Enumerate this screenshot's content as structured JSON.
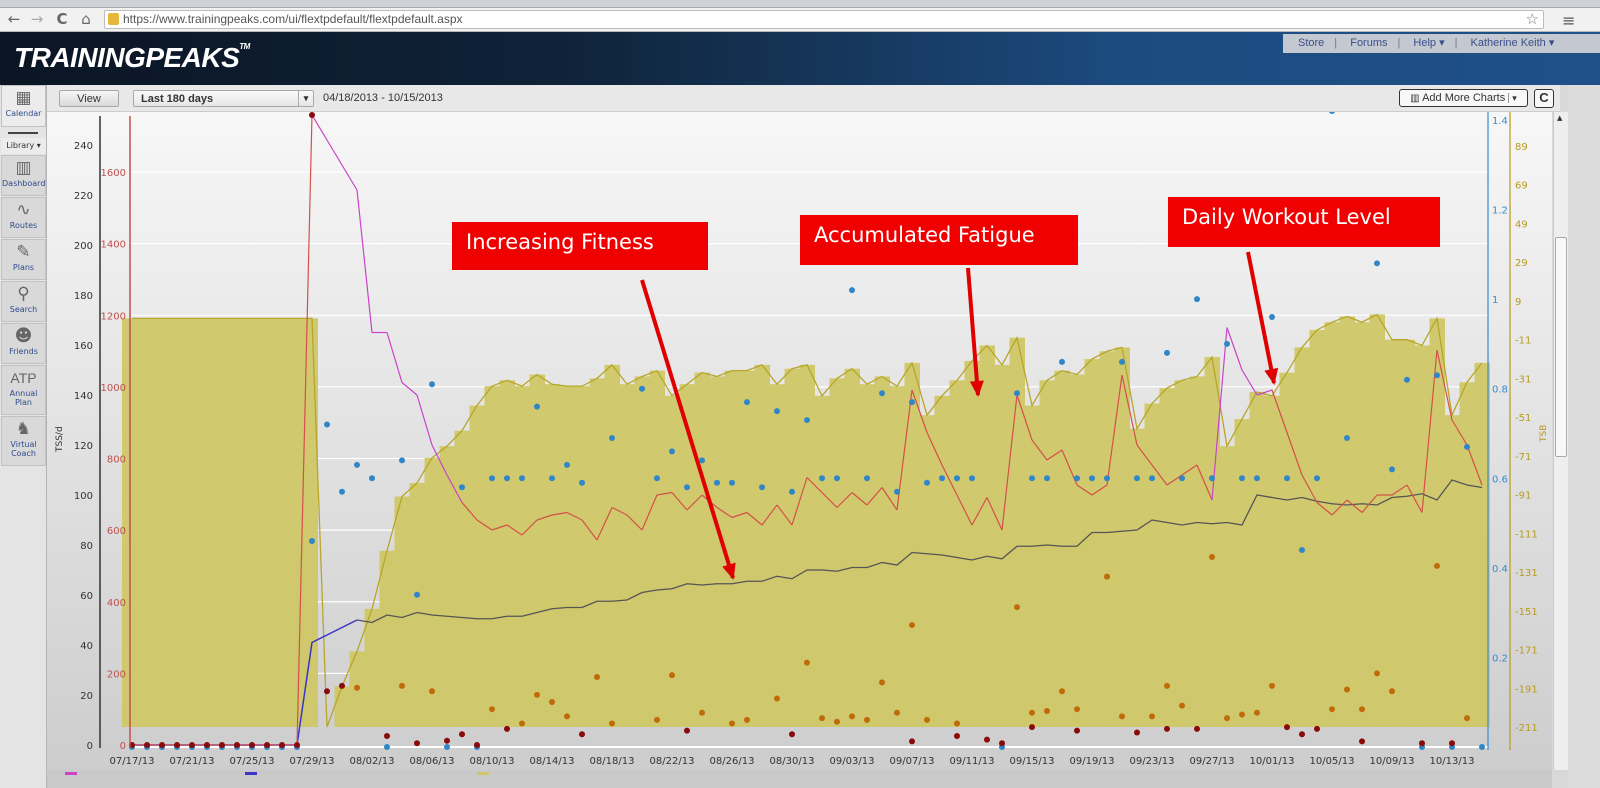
{
  "browser": {
    "url_host": "https://www.trainingpeaks.com",
    "url_path": "/ui/flextpdefault/flextpdefault.aspx",
    "back_icon": "←",
    "forward_icon": "→",
    "reload_icon": "C",
    "home_icon": "⌂",
    "star_icon": "☆",
    "menu_icon": "≡"
  },
  "header": {
    "logo": "TRAININGPEAKS",
    "tm": "TM",
    "links": [
      "Store",
      "Forums",
      "Help ▾",
      "Katherine Keith ▾"
    ]
  },
  "toolbar": {
    "view_label": "View",
    "range_value": "Last 180 days",
    "range_arrow": "▾",
    "date_range": "04/18/2013 - 10/15/2013",
    "add_charts_label": "Add More Charts",
    "add_charts_arrow": "▾",
    "refresh_icon": "C"
  },
  "sidebar": {
    "items": [
      {
        "label": "Calendar",
        "icon": "calendar-icon",
        "glyph": "▦"
      },
      {
        "label": "Library ▾",
        "icon": "",
        "glyph": ""
      },
      {
        "label": "Dashboard",
        "icon": "bar-chart-icon",
        "glyph": "▥"
      },
      {
        "label": "Routes",
        "icon": "route-icon",
        "glyph": "∿"
      },
      {
        "label": "Plans",
        "icon": "plan-edit-icon",
        "glyph": "✎"
      },
      {
        "label": "Search",
        "icon": "search-icon",
        "glyph": "⚲"
      },
      {
        "label": "Friends",
        "icon": "friends-icon",
        "glyph": "☻"
      },
      {
        "label": "Annual Plan",
        "icon": "atp-icon",
        "glyph": "ATP"
      },
      {
        "label": "Virtual Coach",
        "icon": "coach-icon",
        "glyph": "♞"
      }
    ]
  },
  "annotations": [
    {
      "text": "Increasing Fitness"
    },
    {
      "text": "Accumulated Fatigue"
    },
    {
      "text": "Daily Workout Level"
    }
  ],
  "chart_data": {
    "type": "line",
    "grid": true,
    "colors": {
      "fitness": "#555555",
      "fitness_early": "#3a34c8",
      "fatigue": "#d4504a",
      "fatigue_high": "#c844c8",
      "form": "#b8a62a",
      "form_fill": "#cfc766",
      "if_dots": "#2f86c8",
      "dots_dark": "#8a0a0a",
      "dots_orange": "#c06a08",
      "axis_red": "#c0504d",
      "axis_blue": "#3a8ad0",
      "axis_tsb": "#b89a20"
    },
    "y_left": {
      "label": "TSS/d",
      "range": [
        0,
        240
      ],
      "ticks": [
        0,
        20,
        40,
        60,
        80,
        100,
        120,
        140,
        160,
        180,
        200,
        220,
        240
      ]
    },
    "y_left2": {
      "range": [
        0,
        1600
      ],
      "ticks": [
        0,
        200,
        400,
        600,
        800,
        1000,
        1200,
        1400,
        1600
      ]
    },
    "y_right": {
      "range": [
        0,
        1.4
      ],
      "ticks": [
        "0.2",
        "0.4",
        "0.6",
        "0.8",
        "1",
        "1.2",
        "1.4"
      ]
    },
    "y_right2": {
      "label": "TSB",
      "range": [
        -211,
        89
      ],
      "ticks": [
        89,
        69,
        49,
        29,
        9,
        -11,
        -31,
        -51,
        -71,
        -91,
        -111,
        -131,
        -151,
        -171,
        -191,
        -211
      ]
    },
    "x_ticks": [
      "07/17/13",
      "07/21/13",
      "07/25/13",
      "07/29/13",
      "08/02/13",
      "08/06/13",
      "08/10/13",
      "08/14/13",
      "08/18/13",
      "08/22/13",
      "08/26/13",
      "08/30/13",
      "09/03/13",
      "09/07/13",
      "09/11/13",
      "09/15/13",
      "09/19/13",
      "09/23/13",
      "09/27/13",
      "10/01/13",
      "10/05/13",
      "10/09/13",
      "10/13/13"
    ],
    "dates": [
      "07/17/13",
      "07/18/13",
      "07/19/13",
      "07/20/13",
      "07/21/13",
      "07/22/13",
      "07/23/13",
      "07/24/13",
      "07/25/13",
      "07/26/13",
      "07/27/13",
      "07/28/13",
      "07/29/13",
      "07/30/13",
      "07/31/13",
      "08/01/13",
      "08/02/13",
      "08/03/13",
      "08/04/13",
      "08/05/13",
      "08/06/13",
      "08/07/13",
      "08/08/13",
      "08/09/13",
      "08/10/13",
      "08/11/13",
      "08/12/13",
      "08/13/13",
      "08/14/13",
      "08/15/13",
      "08/16/13",
      "08/17/13",
      "08/18/13",
      "08/19/13",
      "08/20/13",
      "08/21/13",
      "08/22/13",
      "08/23/13",
      "08/24/13",
      "08/25/13",
      "08/26/13",
      "08/27/13",
      "08/28/13",
      "08/29/13",
      "08/30/13",
      "08/31/13",
      "09/01/13",
      "09/02/13",
      "09/03/13",
      "09/04/13",
      "09/05/13",
      "09/06/13",
      "09/07/13",
      "09/08/13",
      "09/09/13",
      "09/10/13",
      "09/11/13",
      "09/12/13",
      "09/13/13",
      "09/14/13",
      "09/15/13",
      "09/16/13",
      "09/17/13",
      "09/18/13",
      "09/19/13",
      "09/20/13",
      "09/21/13",
      "09/22/13",
      "09/23/13",
      "09/24/13",
      "09/25/13",
      "09/26/13",
      "09/27/13",
      "09/28/13",
      "09/29/13",
      "09/30/13",
      "10/01/13",
      "10/02/13",
      "10/03/13",
      "10/04/13",
      "10/05/13",
      "10/06/13",
      "10/07/13",
      "10/08/13",
      "10/09/13",
      "10/10/13",
      "10/11/13",
      "10/12/13",
      "10/13/13",
      "10/14/13",
      "10/15/13"
    ],
    "series": [
      {
        "key": "fitness",
        "axis": "left",
        "values": [
          0,
          0,
          0,
          0,
          0,
          0,
          0,
          0,
          0,
          0,
          0,
          0,
          41,
          44,
          47,
          50,
          49,
          52,
          51,
          53,
          52,
          51.5,
          51,
          50.5,
          50.5,
          51.5,
          51.5,
          53,
          54.5,
          55,
          55,
          57.5,
          57.5,
          58,
          61,
          62,
          62.5,
          64.5,
          64,
          64.5,
          64.5,
          65.5,
          65.5,
          67.5,
          66.5,
          70,
          70,
          69.5,
          71,
          71,
          73,
          72,
          77,
          76.5,
          76,
          75,
          74,
          75.5,
          74.5,
          79.5,
          79.5,
          80,
          79.5,
          79.5,
          85,
          85,
          85.5,
          86,
          90,
          89,
          88,
          89,
          88.5,
          89,
          88,
          100,
          99,
          98,
          99,
          97.5,
          96.5,
          96,
          96.5,
          96,
          99,
          99.5,
          100.5,
          98,
          106,
          104,
          103
        ]
      },
      {
        "key": "fatigue",
        "axis": "left",
        "values": [
          0,
          0,
          0,
          0,
          0,
          0,
          0,
          0,
          0,
          0,
          0,
          0,
          252,
          242,
          232,
          222,
          165,
          165,
          145,
          140,
          120,
          108,
          97,
          90,
          86,
          88,
          84,
          90,
          92,
          93,
          90,
          82,
          95,
          92,
          86,
          100,
          101,
          94,
          100,
          95,
          91,
          93,
          88,
          96,
          88,
          107,
          101,
          95,
          101,
          96,
          103,
          94,
          142,
          125,
          112,
          100,
          88,
          99,
          86,
          140,
          122,
          114,
          118,
          104,
          100,
          104,
          148,
          120,
          112,
          104,
          108,
          112,
          98,
          167,
          150,
          140,
          142,
          125,
          108,
          97,
          92,
          98,
          93,
          100,
          100,
          104,
          93,
          158,
          130,
          120,
          104
        ]
      },
      {
        "key": "form",
        "axis": "right2",
        "values": [
          0,
          0,
          0,
          0,
          0,
          0,
          0,
          0,
          0,
          0,
          0,
          0,
          0,
          -211,
          -190,
          -172,
          -150,
          -120,
          -92,
          -85,
          -72,
          -66,
          -58,
          -45,
          -35,
          -32,
          -35,
          -29,
          -34,
          -35,
          -35,
          -31,
          -24,
          -34,
          -30,
          -27,
          -40,
          -34,
          -28,
          -30,
          -27,
          -27,
          -24,
          -34,
          -26,
          -24,
          -40,
          -31,
          -26,
          -34,
          -30,
          -35,
          -23,
          -50,
          -40,
          -32,
          -22,
          -14,
          -24,
          -10,
          -45,
          -32,
          -27,
          -29,
          -21,
          -17,
          -15,
          -57,
          -44,
          -36,
          -32,
          -30,
          -20,
          -66,
          -52,
          -38,
          -40,
          -28,
          -15,
          -6,
          -2,
          1,
          -2,
          2,
          -11,
          -11,
          -14,
          0,
          -50,
          -33,
          -23
        ]
      },
      {
        "key": "if_dots",
        "axis": "right",
        "values": [
          0,
          0,
          0,
          0,
          0,
          0,
          0,
          0,
          0,
          0,
          0,
          0,
          0.46,
          0.72,
          0.57,
          0.63,
          0.6,
          0,
          0.64,
          0.34,
          0.81,
          0,
          0.58,
          0,
          0.6,
          0.6,
          0.6,
          0.76,
          0.6,
          0.63,
          0.59,
          null,
          0.69,
          null,
          0.8,
          0.6,
          0.66,
          0.58,
          0.64,
          0.59,
          0.59,
          0.77,
          0.58,
          0.75,
          0.57,
          0.73,
          0.6,
          0.6,
          1.02,
          0.6,
          0.79,
          0.57,
          0.77,
          0.59,
          0.6,
          0.6,
          0.6,
          null,
          0,
          0.79,
          0.6,
          0.6,
          0.86,
          0.6,
          0.6,
          0.6,
          0.86,
          0.6,
          0.6,
          0.88,
          0.6,
          1.0,
          0.6,
          0.9,
          0.6,
          0.6,
          0.96,
          0.6,
          0.44,
          0.6,
          1.42,
          0.69,
          null,
          1.08,
          0.62,
          0.82,
          0,
          0.83,
          0,
          0.67,
          0
        ]
      },
      {
        "key": "dots_dark",
        "axis": "left2",
        "values": [
          0,
          0,
          0,
          0,
          0,
          0,
          0,
          0,
          0,
          0,
          0,
          0,
          null,
          150,
          165,
          null,
          null,
          25,
          null,
          5,
          null,
          12,
          30,
          0,
          null,
          45,
          null,
          null,
          null,
          null,
          30,
          null,
          null,
          null,
          null,
          null,
          null,
          40,
          null,
          null,
          null,
          null,
          null,
          null,
          30,
          null,
          null,
          null,
          null,
          null,
          null,
          null,
          10,
          null,
          null,
          25,
          null,
          15,
          5,
          null,
          50,
          null,
          null,
          40,
          null,
          null,
          null,
          35,
          null,
          45,
          null,
          45,
          null,
          null,
          null,
          null,
          null,
          50,
          30,
          45,
          null,
          null,
          10,
          null,
          null,
          null,
          5,
          null,
          5,
          null,
          null
        ]
      },
      {
        "key": "dots_orange",
        "axis": "left2",
        "values": [
          null,
          null,
          null,
          null,
          null,
          null,
          null,
          null,
          null,
          null,
          null,
          null,
          null,
          null,
          null,
          160,
          null,
          null,
          165,
          null,
          150,
          null,
          null,
          null,
          100,
          null,
          60,
          140,
          120,
          80,
          null,
          190,
          60,
          null,
          null,
          70,
          195,
          null,
          90,
          null,
          60,
          70,
          null,
          130,
          null,
          230,
          75,
          65,
          80,
          70,
          175,
          90,
          335,
          70,
          null,
          60,
          null,
          null,
          null,
          385,
          90,
          95,
          150,
          100,
          null,
          470,
          80,
          null,
          80,
          165,
          110,
          null,
          525,
          75,
          85,
          90,
          165,
          null,
          null,
          null,
          100,
          155,
          100,
          200,
          150,
          null,
          null,
          500,
          null,
          75,
          null
        ]
      }
    ]
  }
}
